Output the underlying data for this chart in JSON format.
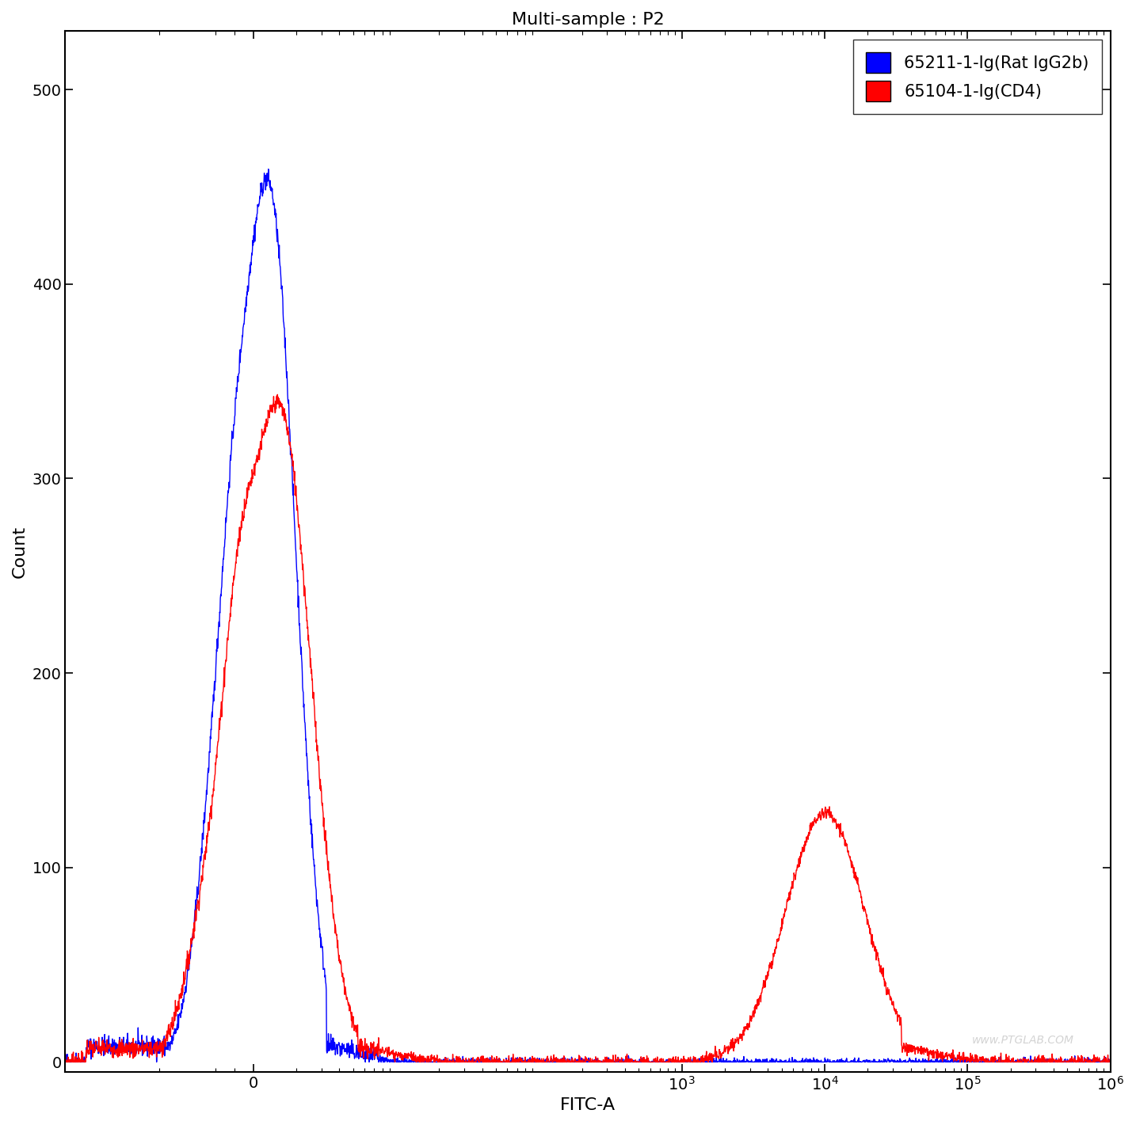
{
  "title": "Multi-sample : P2",
  "xlabel": "FITC-A",
  "ylabel": "Count",
  "ylim": [
    -5,
    530
  ],
  "yticks": [
    0,
    100,
    200,
    300,
    400,
    500
  ],
  "legend_labels": [
    "65211-1-Ig(Rat IgG2b)",
    "65104-1-Ig(CD4)"
  ],
  "legend_colors": [
    "#0000ff",
    "#ff0000"
  ],
  "blue_color": "#0000ff",
  "red_color": "#ff0000",
  "background_color": "#ffffff",
  "watermark": "www.PTGLAB.COM",
  "title_fontsize": 16,
  "axis_label_fontsize": 16,
  "tick_fontsize": 14
}
